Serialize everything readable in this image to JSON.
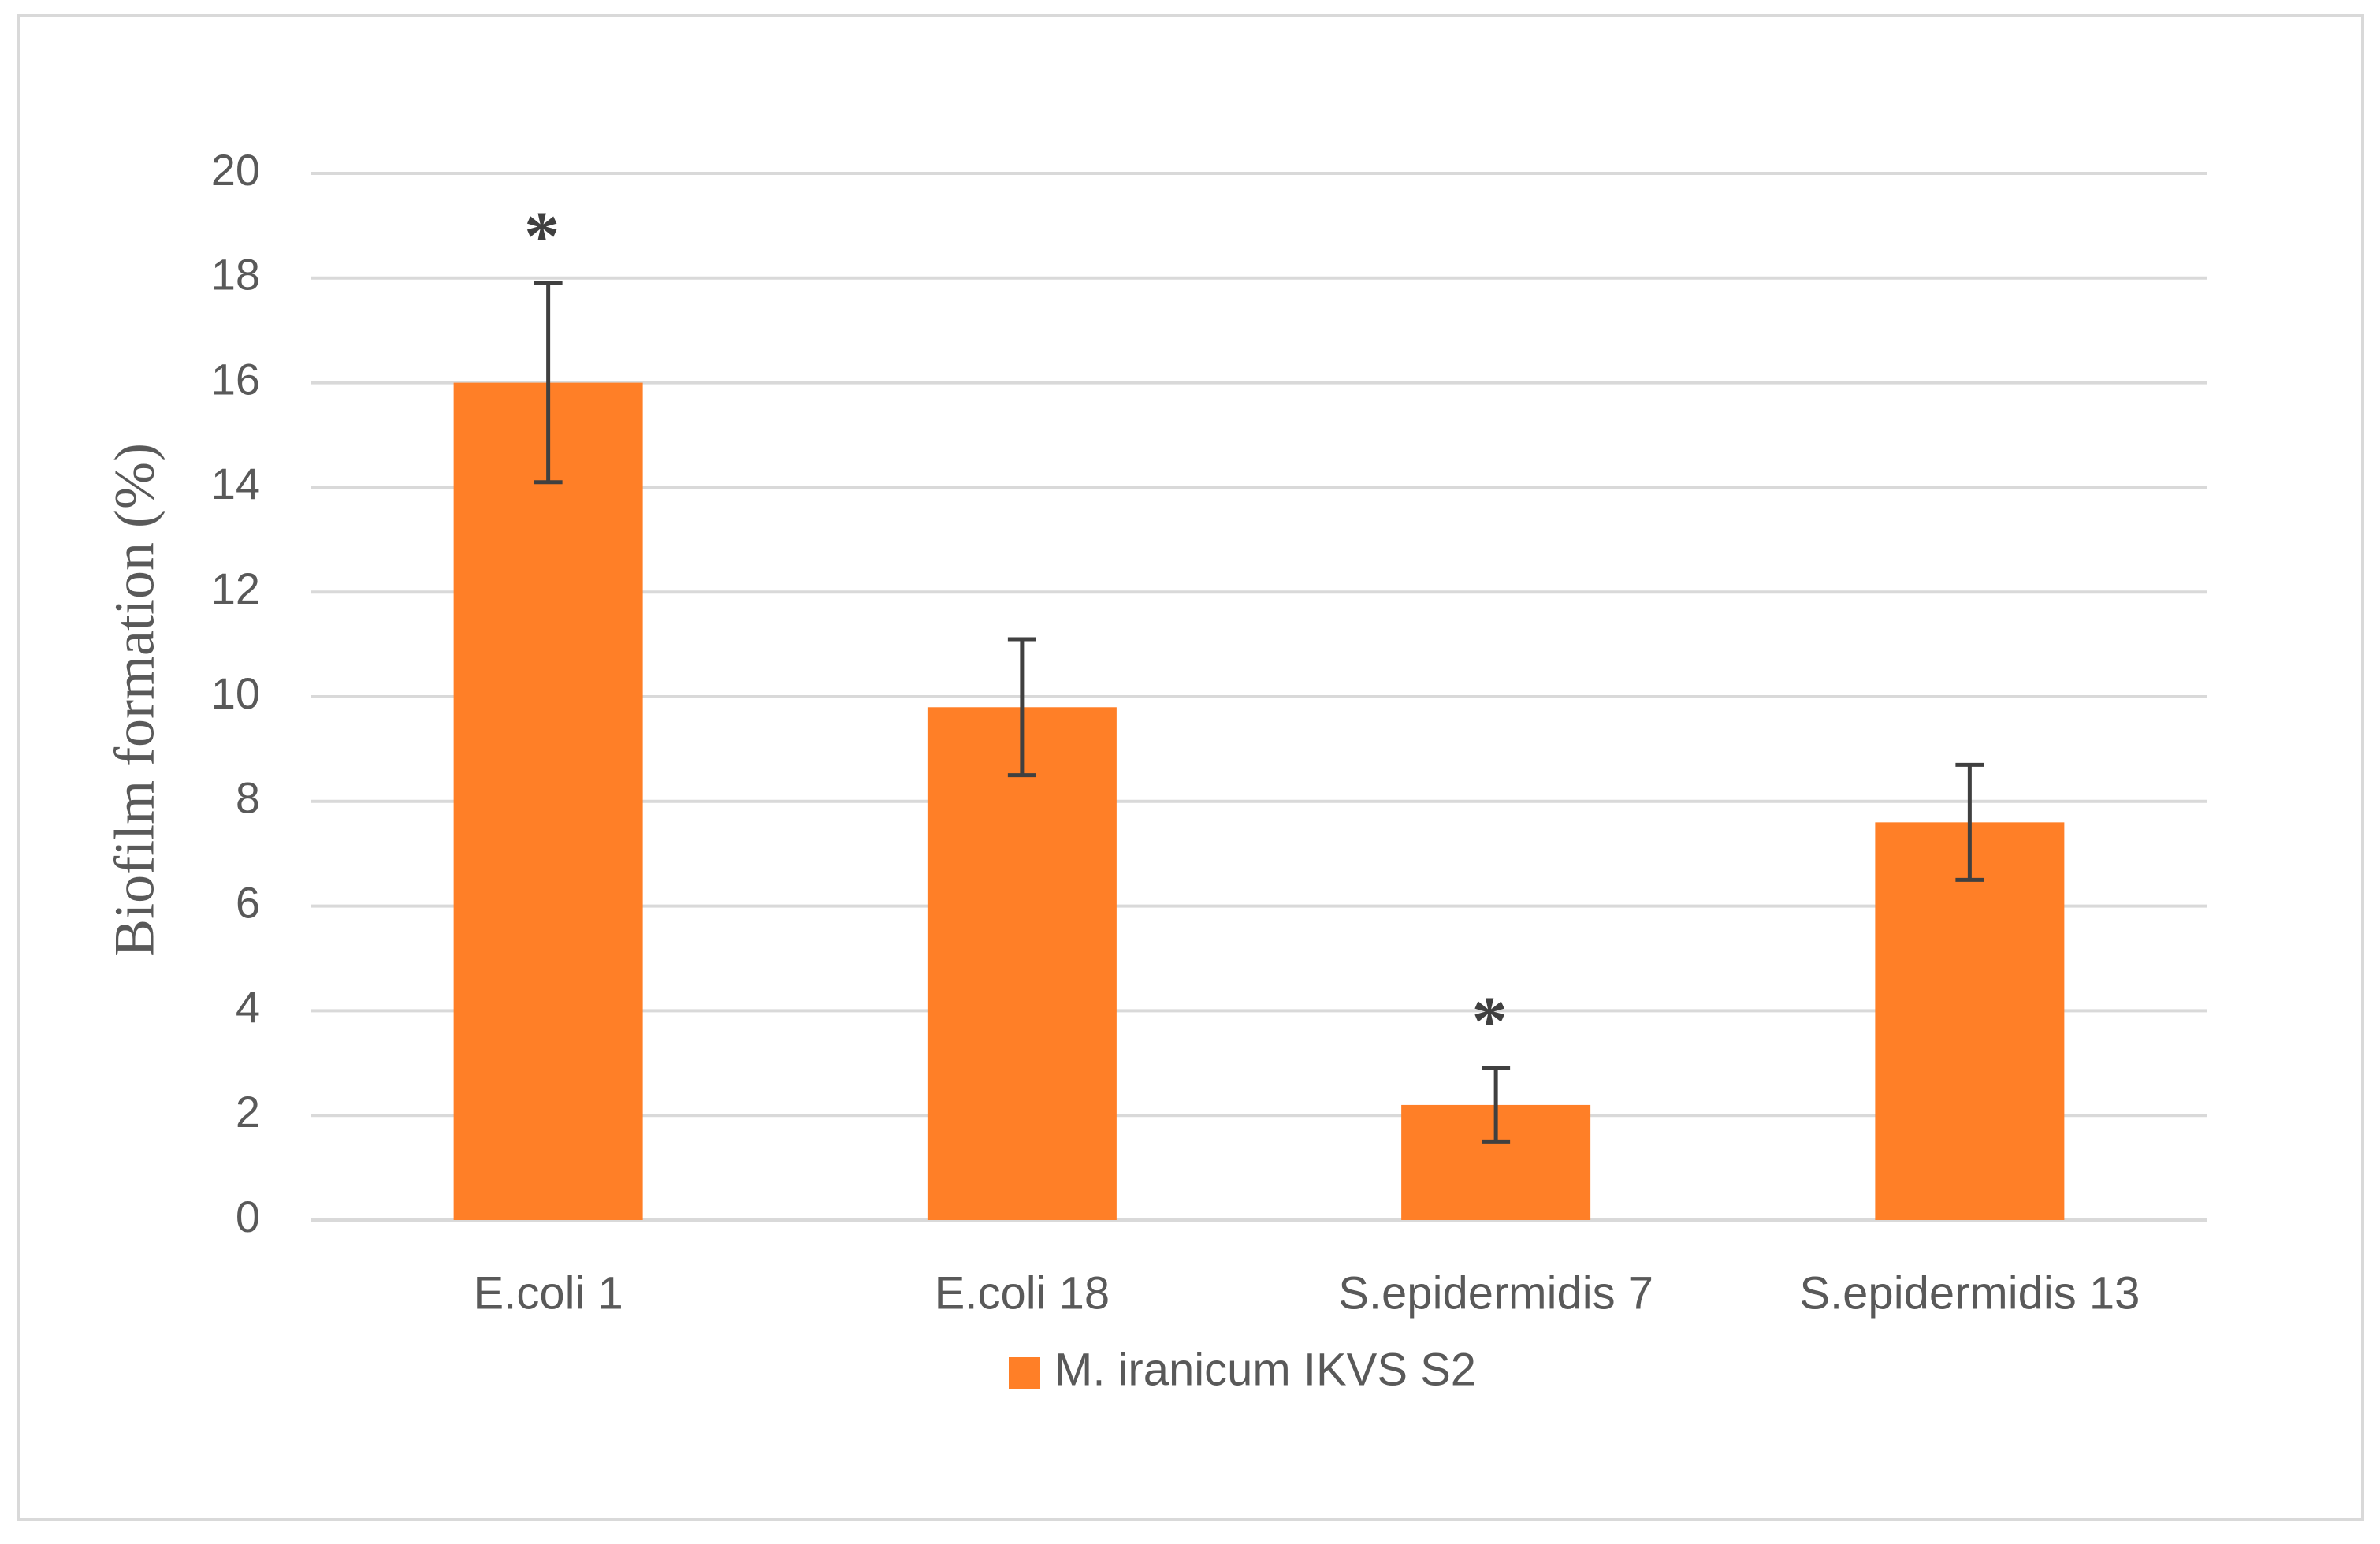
{
  "chart_data": {
    "type": "bar",
    "title": "",
    "xlabel": "",
    "ylabel": "Biofilm formation (%)",
    "ylim": [
      0,
      20
    ],
    "yticks": [
      0,
      2,
      4,
      6,
      8,
      10,
      12,
      14,
      16,
      18,
      20
    ],
    "grid": true,
    "categories": [
      "E.coli 1",
      "E.coli 18",
      "S.epidermidis 7",
      "S.epidermidis 13"
    ],
    "series": [
      {
        "name": "M. iranicum IKVS S2",
        "color": "#FF7F27",
        "values": [
          16.0,
          9.8,
          2.2,
          7.6
        ],
        "error_low": [
          14.1,
          8.5,
          1.5,
          6.5
        ],
        "error_high": [
          17.9,
          11.1,
          2.9,
          8.7
        ],
        "significance": [
          "*",
          "",
          "*",
          ""
        ]
      }
    ],
    "legend_position": "bottom-center"
  },
  "colors": {
    "bar": "#FF7F27",
    "grid": "#D9D9D9",
    "error_bar": "#404040",
    "axis_text": "#595959",
    "frame": "#D9D9D9"
  }
}
